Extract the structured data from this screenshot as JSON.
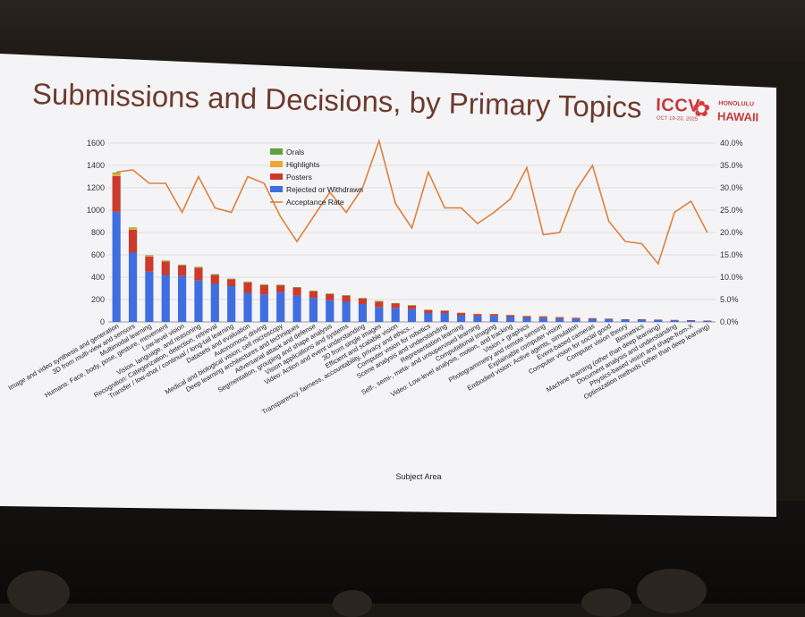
{
  "slide": {
    "title": "Submissions and Decisions, by Primary Topics",
    "logo": {
      "main": "ICCV",
      "dates": "OCT 19-23, 2025",
      "city": "HONOLULU",
      "state": "HAWAII"
    }
  },
  "chart_data": {
    "type": "bar",
    "stacked": true,
    "secondary_line": "Acceptance Rate",
    "xlabel": "Subject Area",
    "y_ticks": [
      "0",
      "200",
      "400",
      "600",
      "800",
      "1000",
      "1200",
      "1400",
      "1600"
    ],
    "ylim": [
      0,
      1600
    ],
    "y2_ticks": [
      "0.0%",
      "5.0%",
      "10.0%",
      "15.0%",
      "20.0%",
      "25.0%",
      "30.0%",
      "35.0%",
      "40.0%"
    ],
    "y2lim": [
      0,
      40
    ],
    "legend": [
      "Orals",
      "Highlights",
      "Posters",
      "Rejected or Withdrawn",
      "Acceptance Rate"
    ],
    "legend_position": "top-center",
    "colors": {
      "orals": "#5aa140",
      "highlights": "#f0a630",
      "posters": "#cc3a2c",
      "rejected": "#3f6ee0",
      "acceptance_rate": "#e0803c"
    },
    "categories": [
      "Image and video synthesis and generation",
      "3D from multi-view and sensors",
      "Multimodal learning",
      "Humans: Face, body, pose, gesture, movement",
      "Low-level vision",
      "Vision, language, and reasoning",
      "Recognition: Categorization, detection, retrieval",
      "Transfer / low-shot / continual / long-tail learning",
      "Datasets and evaluation",
      "Autonomous driving",
      "Medical and biological vision; cell microscopy",
      "Deep learning architectures and techniques",
      "Adversarial attack and defense",
      "Segmentation, grouping and shape analysis",
      "Vision applications and systems",
      "Video: Action and event understanding",
      "3D from single images",
      "Efficient and scalable vision",
      "Transparency, fairness, accountability, privacy and ethics...",
      "Computer vision for robotics",
      "Scene analysis and understanding",
      "Representation learning",
      "Self-, semi-, meta- and unsupervised learning",
      "Computational imaging",
      "Video: Low-level analysis, motion, and tracking",
      "Vision + graphics",
      "Photogrammetry and remote sensing",
      "Explainable computer vision",
      "Embodied vision: Active agents, simulation",
      "Event-based cameras",
      "Computer vision for social good",
      "Computer vision theory",
      "Biometrics",
      "Machine learning (other than deep learning)",
      "Document analysis and understanding",
      "Physics-based vision and shape-from-X",
      "Optimization methods (other than deep learning)"
    ],
    "series": [
      {
        "name": "Rejected or Withdrawn",
        "values": [
          985,
          620,
          450,
          420,
          410,
          370,
          340,
          320,
          260,
          245,
          265,
          235,
          215,
          195,
          180,
          160,
          130,
          125,
          115,
          80,
          80,
          60,
          55,
          55,
          48,
          40,
          38,
          33,
          30,
          27,
          25,
          20,
          20,
          18,
          15,
          13,
          10
        ]
      },
      {
        "name": "Posters",
        "values": [
          320,
          205,
          135,
          120,
          95,
          115,
          80,
          62,
          93,
          85,
          63,
          72,
          60,
          55,
          55,
          50,
          53,
          40,
          32,
          28,
          22,
          22,
          17,
          16,
          14,
          13,
          12,
          11,
          8,
          7,
          5,
          4,
          4,
          3,
          3,
          3,
          2
        ]
      },
      {
        "name": "Highlights",
        "values": [
          22,
          15,
          8,
          7,
          6,
          6,
          5,
          4,
          6,
          4,
          3,
          4,
          3,
          3,
          3,
          3,
          3,
          3,
          2,
          2,
          1,
          1,
          1,
          1,
          1,
          1,
          1,
          1,
          1,
          0,
          0,
          0,
          0,
          0,
          0,
          0,
          0
        ]
      },
      {
        "name": "Orals",
        "values": [
          8,
          5,
          3,
          2,
          2,
          2,
          2,
          1,
          2,
          1,
          1,
          1,
          1,
          1,
          1,
          1,
          1,
          1,
          1,
          0,
          0,
          0,
          0,
          0,
          0,
          0,
          0,
          0,
          0,
          0,
          0,
          0,
          0,
          0,
          0,
          0,
          0
        ]
      },
      {
        "name": "Acceptance Rate",
        "axis": "secondary",
        "unit": "%",
        "values": [
          33.5,
          34.0,
          31.0,
          31.0,
          24.5,
          32.5,
          25.5,
          24.5,
          32.5,
          31.0,
          23.5,
          18.0,
          23.5,
          29.0,
          24.5,
          30.0,
          40.5,
          26.5,
          21.0,
          33.5,
          25.5,
          25.5,
          22.0,
          24.5,
          27.5,
          34.5,
          19.5,
          20.0,
          29.5,
          35.0,
          22.5,
          18.0,
          17.5,
          13.0,
          24.5,
          27.0,
          20.0
        ]
      }
    ]
  }
}
